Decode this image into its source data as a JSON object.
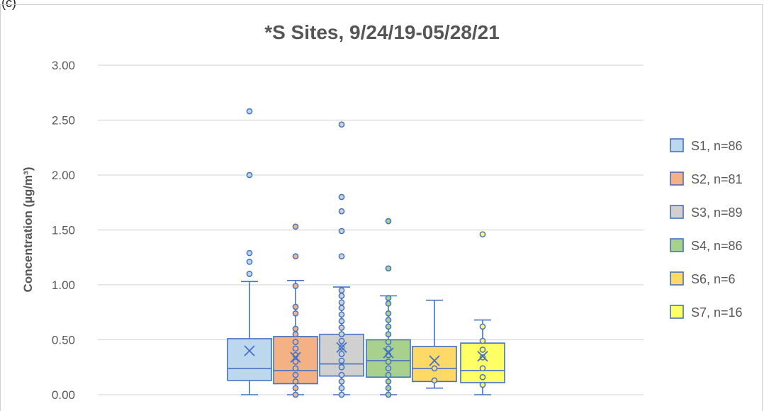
{
  "panel_label": "(c)",
  "chart_data": {
    "type": "box",
    "title": "*S Sites, 9/24/19-05/28/21",
    "xlabel": "",
    "ylabel": "Concentration (µg/m³)",
    "ylim": [
      0,
      3
    ],
    "yticks": [
      "0.00",
      "0.50",
      "1.00",
      "1.50",
      "2.00",
      "2.50",
      "3.00"
    ],
    "grid": true,
    "legend_position": "right",
    "series": [
      {
        "name": "S1, n=86",
        "fill": "#bdd7ee",
        "edge": "#4472c4",
        "point": "#bdd7ee",
        "q1": 0.13,
        "median": 0.24,
        "q3": 0.51,
        "mean": 0.4,
        "whisker_low": 0.0,
        "whisker_high": 1.03,
        "points": [
          1.1,
          1.21,
          1.29,
          2.0,
          2.58
        ]
      },
      {
        "name": "S2, n=81",
        "fill": "#f4b183",
        "edge": "#4472c4",
        "point": "#f4b183",
        "q1": 0.1,
        "median": 0.22,
        "q3": 0.53,
        "mean": 0.34,
        "whisker_low": 0.0,
        "whisker_high": 1.04,
        "points": [
          0.0,
          0.06,
          0.12,
          0.18,
          0.24,
          0.3,
          0.36,
          0.42,
          0.48,
          0.55,
          0.6,
          0.74,
          0.8,
          0.99,
          1.26,
          1.53
        ]
      },
      {
        "name": "S3, n=89",
        "fill": "#d0d0d0",
        "edge": "#4472c4",
        "point": "#d0d0d0",
        "q1": 0.17,
        "median": 0.28,
        "q3": 0.55,
        "mean": 0.43,
        "whisker_low": 0.0,
        "whisker_high": 0.98,
        "points": [
          0.0,
          0.06,
          0.12,
          0.18,
          0.25,
          0.31,
          0.37,
          0.43,
          0.49,
          0.55,
          0.61,
          0.67,
          0.73,
          0.79,
          0.84,
          0.9,
          0.95,
          1.26,
          1.49,
          1.67,
          1.8,
          2.46
        ]
      },
      {
        "name": "S4, n=86",
        "fill": "#a9d18e",
        "edge": "#4472c4",
        "point": "#a9d18e",
        "q1": 0.16,
        "median": 0.31,
        "q3": 0.5,
        "mean": 0.38,
        "whisker_low": 0.0,
        "whisker_high": 0.9,
        "points": [
          0.0,
          0.06,
          0.12,
          0.18,
          0.24,
          0.3,
          0.36,
          0.42,
          0.48,
          0.55,
          0.62,
          0.68,
          0.74,
          0.83,
          0.88,
          1.15,
          1.58
        ]
      },
      {
        "name": "S6, n=6",
        "fill": "#ffd966",
        "edge": "#4472c4",
        "point": "#ffd966",
        "q1": 0.12,
        "median": 0.24,
        "q3": 0.44,
        "mean": 0.31,
        "whisker_low": 0.06,
        "whisker_high": 0.86,
        "points": [
          0.13,
          0.24
        ]
      },
      {
        "name": "S7, n=16",
        "fill": "#ffff66",
        "edge": "#4472c4",
        "point": "#ffff66",
        "q1": 0.11,
        "median": 0.22,
        "q3": 0.47,
        "mean": 0.35,
        "whisker_low": 0.0,
        "whisker_high": 0.68,
        "points": [
          0.09,
          0.16,
          0.24,
          0.34,
          0.41,
          0.49,
          0.62,
          1.46
        ]
      }
    ]
  }
}
